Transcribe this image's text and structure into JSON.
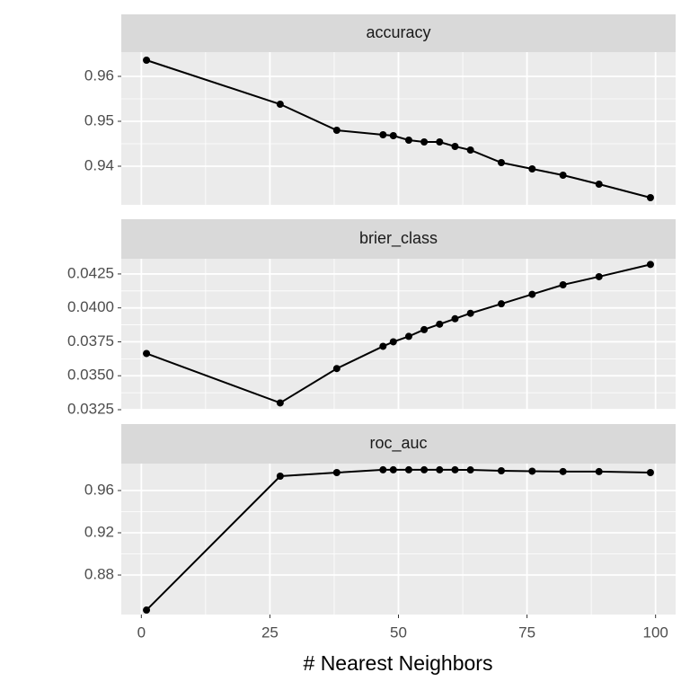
{
  "chart_data": [
    {
      "type": "line",
      "title": "accuracy",
      "color": "#000000",
      "grid": true,
      "minor_grid": true,
      "x": [
        1,
        27,
        38,
        47,
        49,
        52,
        55,
        58,
        61,
        64,
        70,
        76,
        82,
        89,
        99
      ],
      "values": [
        0.9636,
        0.9538,
        0.948,
        0.947,
        0.9468,
        0.9458,
        0.9454,
        0.9454,
        0.9444,
        0.9436,
        0.9408,
        0.9394,
        0.938,
        0.936,
        0.933
      ],
      "xlim": [
        -3.9,
        103.9
      ],
      "ylim": [
        0.9314,
        0.9654
      ],
      "yticks": [
        0.94,
        0.95,
        0.96
      ]
    },
    {
      "type": "line",
      "title": "brier_class",
      "color": "#000000",
      "grid": true,
      "minor_grid": true,
      "x": [
        1,
        27,
        38,
        47,
        49,
        52,
        55,
        58,
        61,
        64,
        70,
        76,
        82,
        89,
        99
      ],
      "values": [
        0.03664,
        0.033,
        0.03553,
        0.03717,
        0.0375,
        0.0379,
        0.0384,
        0.0388,
        0.0392,
        0.0396,
        0.0403,
        0.041,
        0.0417,
        0.0423,
        0.0432
      ],
      "xlim": [
        -3.9,
        103.9
      ],
      "ylim": [
        0.0325,
        0.04362
      ],
      "yticks": [
        0.0325,
        {
          "value": 0.035,
          "label": "0.0350"
        },
        0.0375,
        {
          "value": 0.04,
          "label": "0.0400"
        },
        0.0425
      ]
    },
    {
      "type": "line",
      "title": "roc_auc",
      "color": "#000000",
      "grid": true,
      "minor_grid": true,
      "x": [
        1,
        27,
        38,
        47,
        49,
        52,
        55,
        58,
        61,
        64,
        70,
        76,
        82,
        89,
        99
      ],
      "values": [
        0.8468,
        0.9736,
        0.977,
        0.9796,
        0.9796,
        0.9796,
        0.9796,
        0.9796,
        0.9796,
        0.9795,
        0.9787,
        0.9783,
        0.978,
        0.9779,
        0.977
      ],
      "xlim": [
        -3.9,
        103.9
      ],
      "ylim": [
        0.8426,
        0.9855
      ],
      "yticks": [
        0.88,
        0.92,
        0.96
      ],
      "xticks": [
        0,
        25,
        50,
        75,
        100
      ],
      "xlabel": "# Nearest Neighbors"
    }
  ]
}
